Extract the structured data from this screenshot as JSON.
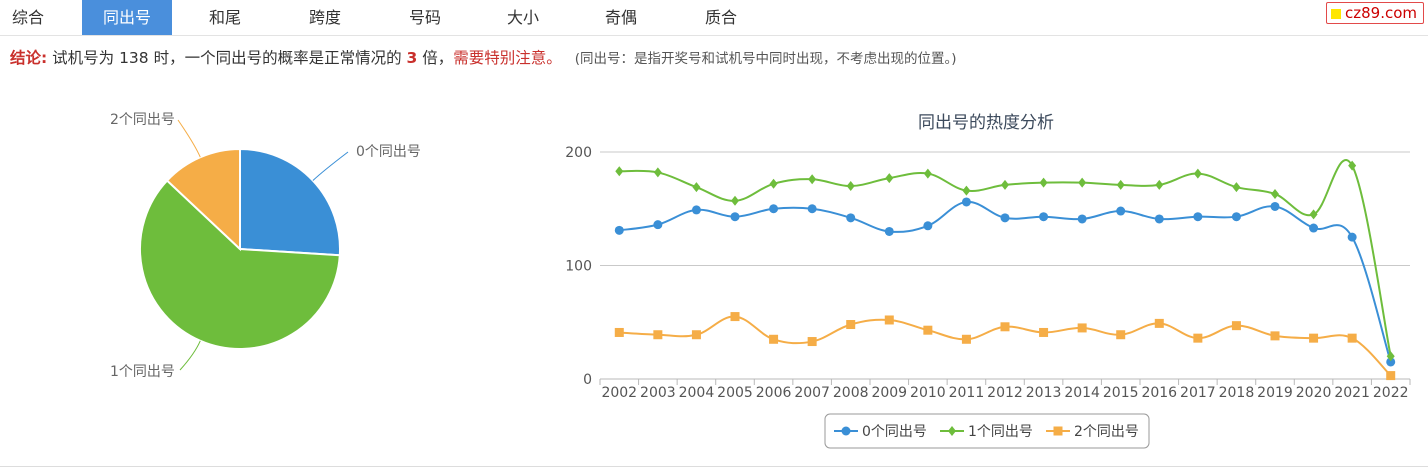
{
  "tabs": [
    {
      "label": "综合",
      "active": false
    },
    {
      "label": "同出号",
      "active": true
    },
    {
      "label": "和尾",
      "active": false
    },
    {
      "label": "跨度",
      "active": false
    },
    {
      "label": "号码",
      "active": false
    },
    {
      "label": "大小",
      "active": false
    },
    {
      "label": "奇偶",
      "active": false
    },
    {
      "label": "质合",
      "active": false
    }
  ],
  "brand": "cz89.com",
  "conclusion": {
    "label": "结论:",
    "text1": "试机号为 138 时，一个同出号的概率是正常情况的",
    "multiple": "3",
    "text2": "倍，",
    "warning": "需要特别注意。",
    "note": "(同出号：是指开奖号和试机号中同时出现，不考虑出现的位置。)"
  },
  "colors": {
    "zero": "#3a8fd6",
    "one": "#6ebd3c",
    "two": "#f5ad47"
  },
  "chart_data": [
    {
      "type": "pie",
      "slices": [
        {
          "label": "0个同出号",
          "value": 26
        },
        {
          "label": "1个同出号",
          "value": 61
        },
        {
          "label": "2个同出号",
          "value": 13
        }
      ]
    },
    {
      "type": "line",
      "title": "同出号的热度分析",
      "x": [
        "2002",
        "2003",
        "2004",
        "2005",
        "2006",
        "2007",
        "2008",
        "2009",
        "2010",
        "2011",
        "2012",
        "2013",
        "2014",
        "2015",
        "2016",
        "2017",
        "2018",
        "2019",
        "2020",
        "2021",
        "2022"
      ],
      "series": [
        {
          "name": "0个同出号",
          "values": [
            131,
            136,
            149,
            143,
            150,
            150,
            142,
            130,
            135,
            156,
            142,
            143,
            141,
            148,
            141,
            143,
            143,
            152,
            133,
            125,
            15
          ]
        },
        {
          "name": "1个同出号",
          "values": [
            183,
            182,
            169,
            157,
            172,
            176,
            170,
            177,
            181,
            166,
            171,
            173,
            173,
            171,
            171,
            181,
            169,
            163,
            145,
            188,
            20
          ]
        },
        {
          "name": "2个同出号",
          "values": [
            41,
            39,
            39,
            55,
            35,
            33,
            48,
            52,
            43,
            35,
            46,
            41,
            45,
            39,
            49,
            36,
            47,
            38,
            36,
            36,
            3
          ]
        }
      ],
      "ylim": [
        0,
        200
      ],
      "yticks": [
        0,
        100,
        200
      ],
      "legend": "bottom"
    }
  ]
}
